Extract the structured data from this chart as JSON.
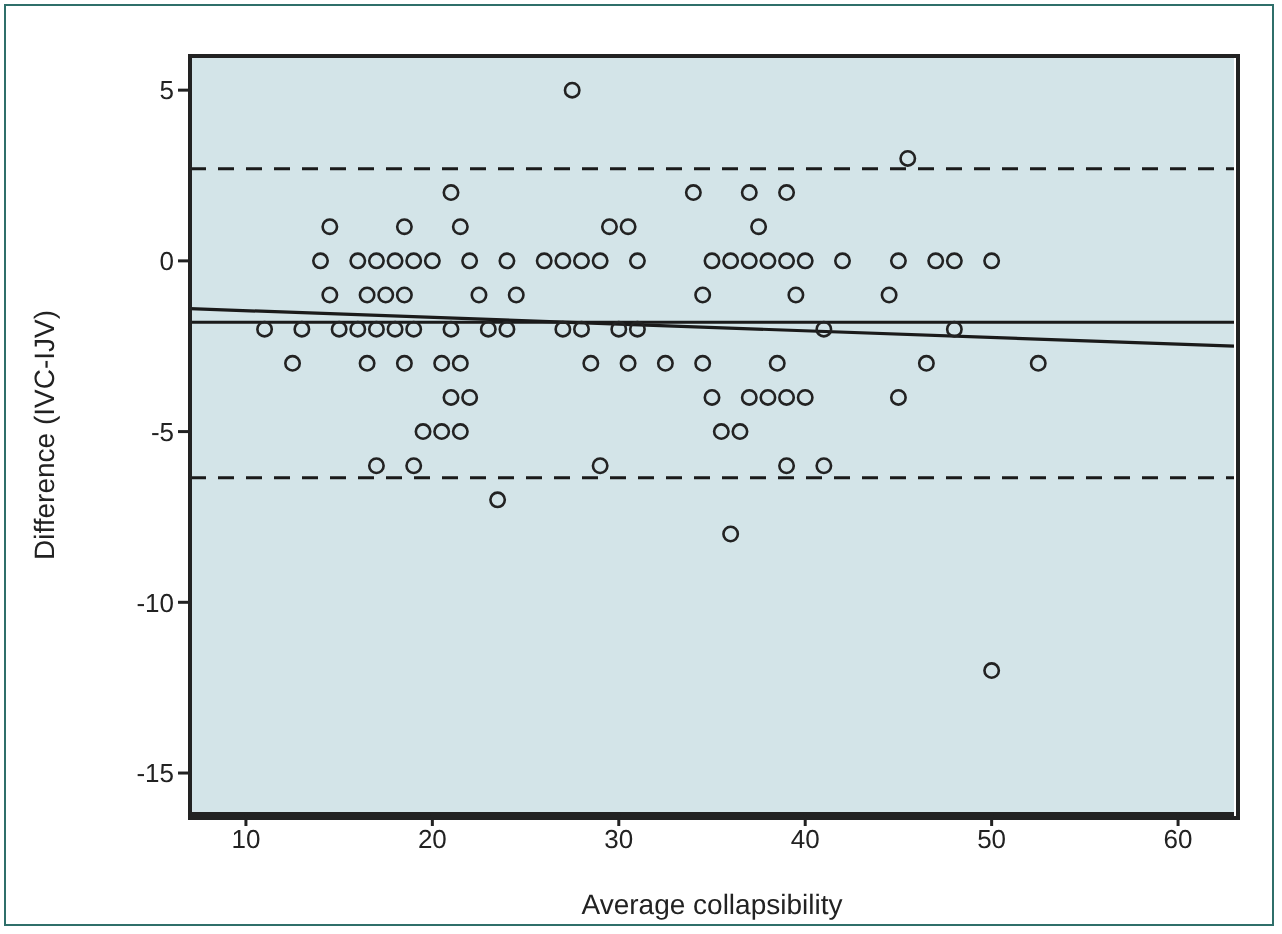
{
  "chart_data": {
    "type": "scatter",
    "xlabel": "Average collapsibility",
    "ylabel": "Difference  (IVC-IJV)",
    "xlim": [
      7,
      63
    ],
    "xticks": [
      10,
      20,
      30,
      40,
      50,
      60
    ],
    "ylim": [
      -16.2,
      6
    ],
    "yticks": [
      -15,
      -10,
      -5,
      0,
      5
    ],
    "grid": false,
    "legend": false,
    "marker": "circle",
    "series": [
      {
        "color": "#222222",
        "x": [
          27.5,
          45.5,
          21,
          34,
          37,
          39,
          14.5,
          18.5,
          21.5,
          29.5,
          30.5,
          37.5,
          14,
          16,
          17,
          18,
          19,
          20,
          22,
          24,
          26,
          27,
          28,
          29,
          31,
          35,
          36,
          37,
          38,
          39,
          40,
          42,
          45,
          47,
          48,
          50,
          14.5,
          16.5,
          17.5,
          18.5,
          22.5,
          24.5,
          34.5,
          39.5,
          44.5,
          11,
          13,
          15,
          16,
          17,
          18,
          19,
          21,
          23,
          24,
          27,
          28,
          30,
          31,
          41,
          48,
          12.5,
          16.5,
          18.5,
          20.5,
          21.5,
          28.5,
          30.5,
          32.5,
          34.5,
          38.5,
          46.5,
          52.5,
          21,
          22,
          35,
          37,
          38,
          39,
          40,
          45,
          19.5,
          20.5,
          21.5,
          35.5,
          36.5,
          17,
          19,
          29,
          39,
          41,
          23.5,
          36,
          50
        ],
        "values": [
          5,
          3,
          2,
          2,
          2,
          2,
          1,
          1,
          1,
          1,
          1,
          1,
          0,
          0,
          0,
          0,
          0,
          0,
          0,
          0,
          0,
          0,
          0,
          0,
          0,
          0,
          0,
          0,
          0,
          0,
          0,
          0,
          0,
          0,
          0,
          0,
          -1,
          -1,
          -1,
          -1,
          -1,
          -1,
          -1,
          -1,
          -1,
          -2,
          -2,
          -2,
          -2,
          -2,
          -2,
          -2,
          -2,
          -2,
          -2,
          -2,
          -2,
          -2,
          -2,
          -2,
          -2,
          -3,
          -3,
          -3,
          -3,
          -3,
          -3,
          -3,
          -3,
          -3,
          -3,
          -3,
          -3,
          -4,
          -4,
          -4,
          -4,
          -4,
          -4,
          -4,
          -4,
          -5,
          -5,
          -5,
          -5,
          -5,
          -6,
          -6,
          -6,
          -6,
          -6,
          -7,
          -8,
          -12
        ]
      },
      {
        "type": "line",
        "color": "#1a1a1a",
        "marker": "none",
        "x": [
          7,
          63
        ],
        "values": [
          -1.4,
          -2.5
        ]
      }
    ],
    "ref_lines": [
      {
        "axis": "y",
        "value": 2.7,
        "color": "#1a1a1a",
        "line_style": "dashed"
      },
      {
        "axis": "y",
        "value": -1.8,
        "color": "#1a1a1a",
        "line_style": "solid"
      },
      {
        "axis": "y",
        "value": -6.35,
        "color": "#1a1a1a",
        "line_style": "dashed"
      }
    ]
  }
}
